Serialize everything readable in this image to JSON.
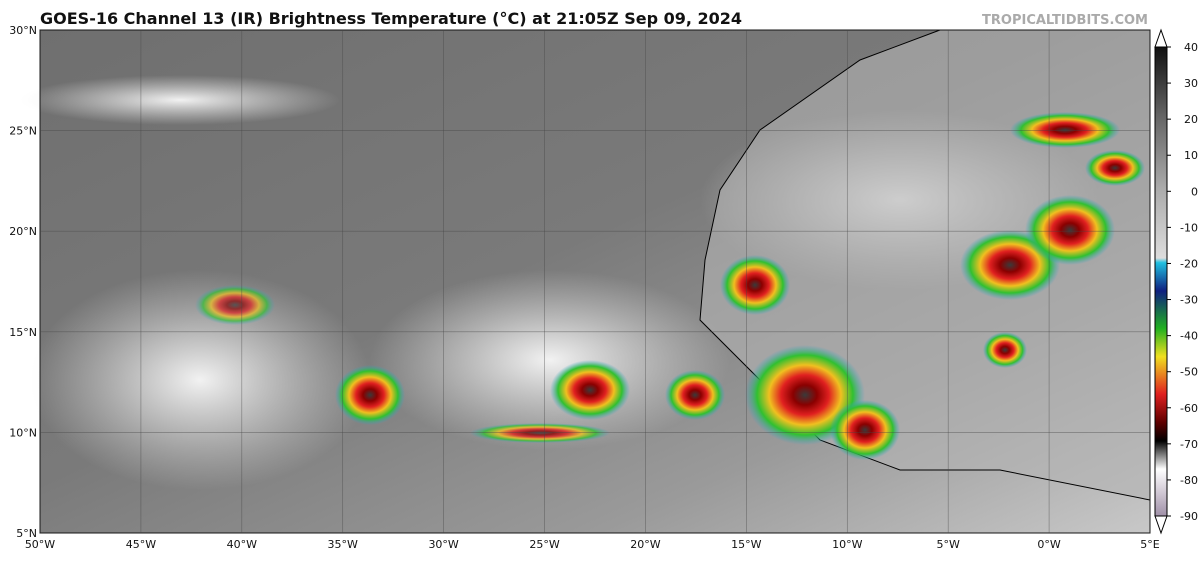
{
  "header": {
    "title": "GOES-16 Channel 13 (IR) Brightness Temperature (°C) at 21:05Z Sep 09, 2024",
    "source": "TROPICALTIDBITS.COM"
  },
  "map": {
    "lat_labels": [
      "30°N",
      "25°N",
      "20°N",
      "15°N",
      "10°N",
      "5°N"
    ],
    "lon_labels": [
      "50°W",
      "45°W",
      "40°W",
      "35°W",
      "30°W",
      "25°W",
      "20°W",
      "15°W",
      "10°W",
      "5°W",
      "0°W",
      "5°E"
    ]
  },
  "colorbar": {
    "range": [
      -90,
      40
    ],
    "ticks": [
      40,
      30,
      20,
      10,
      0,
      -10,
      -20,
      -30,
      -40,
      -50,
      -60,
      -70,
      -80,
      -90
    ]
  }
}
